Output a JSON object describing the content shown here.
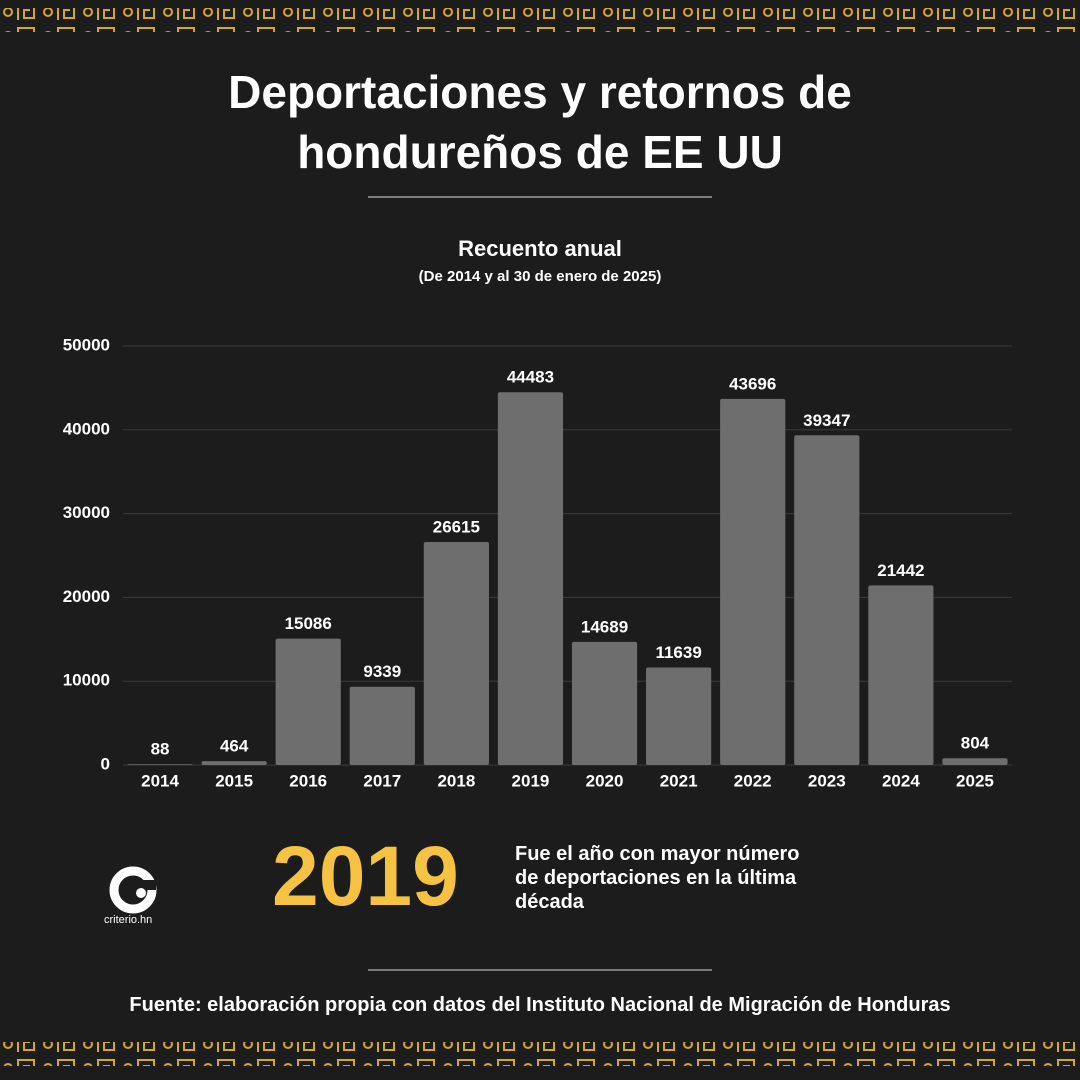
{
  "chart_data": {
    "type": "bar",
    "title": "Deportaciones y retornos de hondureños de EE UU",
    "subtitle": "Recuento anual",
    "note": "(De 2014 y al 30 de enero de 2025)",
    "categories": [
      "2014",
      "2015",
      "2016",
      "2017",
      "2018",
      "2019",
      "2020",
      "2021",
      "2022",
      "2023",
      "2024",
      "2025"
    ],
    "values": [
      88,
      464,
      15086,
      9339,
      26615,
      44483,
      14689,
      11639,
      43696,
      39347,
      21442,
      804
    ],
    "color": "#6e6e6e",
    "ylim": [
      0,
      50000
    ],
    "yticks": [
      0,
      10000,
      20000,
      30000,
      40000,
      50000
    ],
    "grid": true,
    "highlight": {
      "label": "2019",
      "text": "Fue el año con mayor número de deportaciones en la última década"
    },
    "logo": "criterio.hn",
    "source": "Fuente: elaboración propia con datos del Instituto Nacional de Migración de Honduras"
  }
}
